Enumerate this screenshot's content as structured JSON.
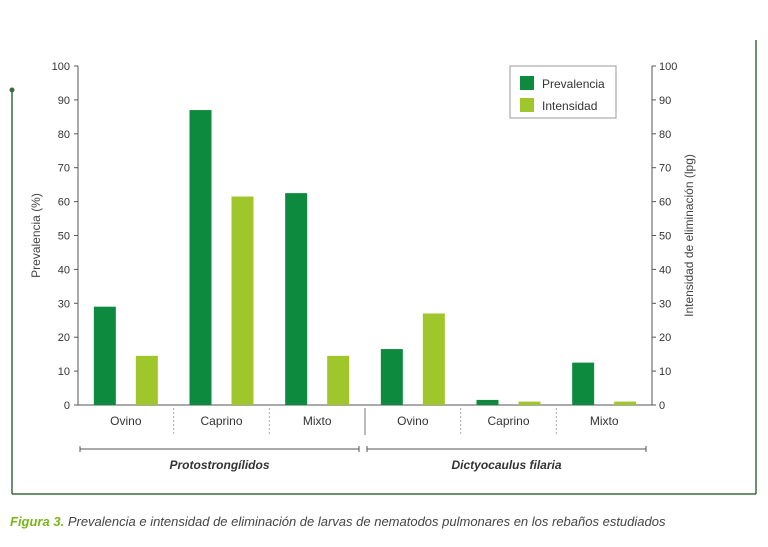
{
  "caption": {
    "figure_label": "Figura 3.",
    "text": "Prevalencia e intensidad de eliminación de larvas de nematodos pulmonares en los rebaños estudiados"
  },
  "chart_data": {
    "type": "bar",
    "categories": [
      "Ovino",
      "Caprino",
      "Mixto",
      "Ovino",
      "Caprino",
      "Mixto"
    ],
    "groups": [
      {
        "label": "Protostrongílidos",
        "categories": [
          "Ovino",
          "Caprino",
          "Mixto"
        ]
      },
      {
        "label": "Dictyocaulus filaria",
        "categories": [
          "Ovino",
          "Caprino",
          "Mixto"
        ]
      }
    ],
    "series": [
      {
        "name": "Prevalencia",
        "color": "#0e8a3e",
        "values": [
          29,
          87,
          62.5,
          16.5,
          1.5,
          12.5
        ]
      },
      {
        "name": "Intensidad",
        "color": "#9fc62b",
        "values": [
          14.5,
          61.5,
          14.5,
          27,
          1,
          1
        ]
      }
    ],
    "ylabel": "Prevalencia (%)",
    "y2label": "Intensidad de eliminación (lpg)",
    "ylim": [
      0,
      100
    ],
    "y2lim": [
      0,
      100
    ],
    "yticks": [
      0,
      10,
      20,
      30,
      40,
      50,
      60,
      70,
      80,
      90,
      100
    ],
    "grid": false,
    "legend_position": "top-right"
  }
}
